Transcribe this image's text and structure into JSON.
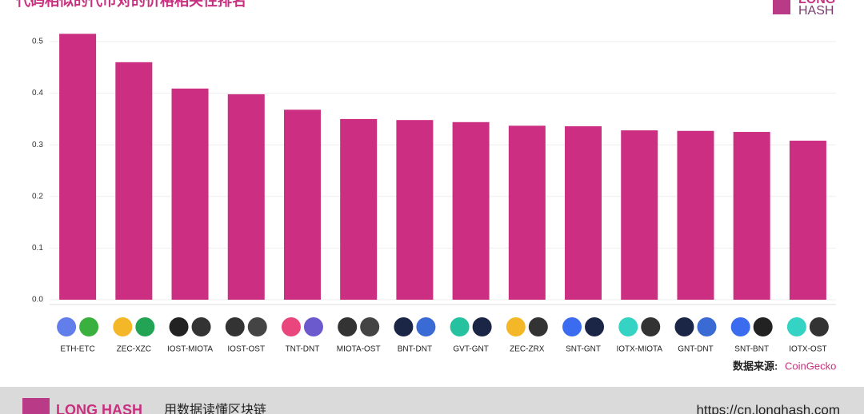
{
  "chart_data": {
    "type": "bar",
    "title": "代码相似的代币对的价格相关性排名",
    "categories": [
      "ETH-ETC",
      "ZEC-XZC",
      "IOST-MIOTA",
      "IOST-OST",
      "TNT-DNT",
      "MIOTA-OST",
      "BNT-DNT",
      "GVT-GNT",
      "ZEC-ZRX",
      "SNT-GNT",
      "IOTX-MIOTA",
      "GNT-DNT",
      "SNT-BNT",
      "IOTX-OST"
    ],
    "values": [
      0.515,
      0.46,
      0.409,
      0.398,
      0.368,
      0.35,
      0.348,
      0.344,
      0.337,
      0.336,
      0.328,
      0.327,
      0.325,
      0.308
    ],
    "color": "#cc2e82",
    "ylim": [
      0,
      0.5
    ],
    "yticks": [
      {
        "value": 0,
        "label": "0.0"
      },
      0.1,
      0.2,
      0.3,
      0.4,
      0.5
    ],
    "grid": true,
    "source_label": "数据来源:",
    "source": "CoinGecko",
    "logo": {
      "top": "LONG",
      "bottom": "HASH"
    },
    "footer": {
      "brand": "LONG HASH",
      "slogan": "用数据读懂区块链",
      "url": "https://cn.longhash.com"
    }
  }
}
